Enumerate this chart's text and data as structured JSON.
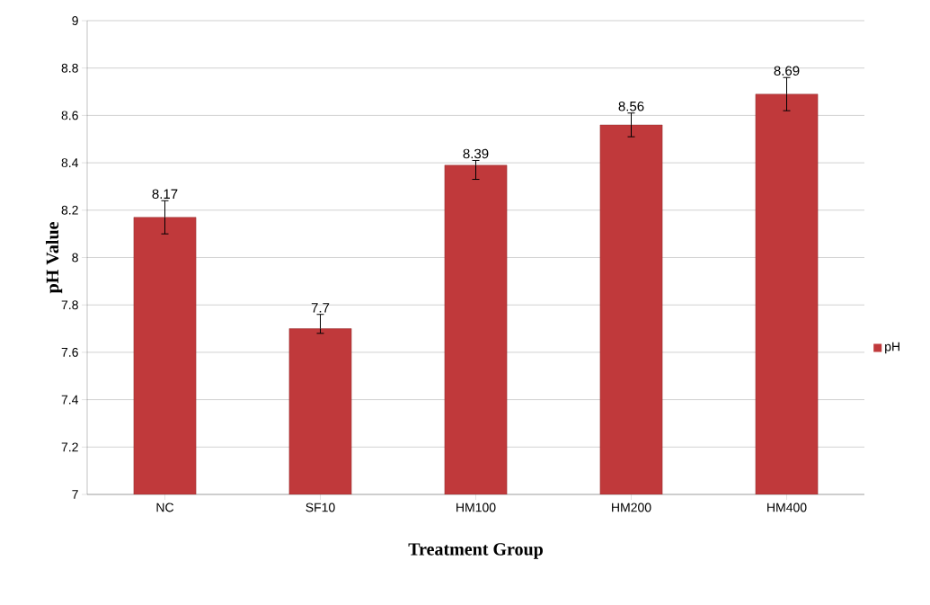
{
  "chart_data": {
    "type": "bar",
    "xlabel": "Treatment Group",
    "ylabel": "pH Value",
    "categories": [
      "NC",
      "SF10",
      "HM100",
      "HM200",
      "HM400"
    ],
    "series": [
      {
        "name": "pH",
        "color": "#c0393b",
        "values": [
          8.17,
          7.7,
          8.39,
          8.56,
          8.69
        ],
        "errors": [
          [
            8.1,
            8.24
          ],
          [
            7.68,
            7.76
          ],
          [
            8.33,
            8.41
          ],
          [
            8.51,
            8.61
          ],
          [
            8.62,
            8.76
          ]
        ],
        "value_labels": [
          "8.17",
          "7.7",
          "8.39",
          "8.56",
          "8.69"
        ]
      }
    ],
    "ylim": [
      7,
      9
    ],
    "yticks": [
      7,
      7.2,
      7.4,
      7.6,
      7.8,
      8,
      8.2,
      8.4,
      8.6,
      8.8,
      9
    ],
    "grid": "y",
    "legend": "right"
  }
}
